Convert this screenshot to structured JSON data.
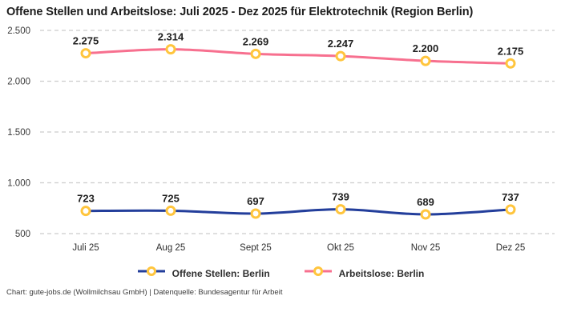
{
  "title": "Offene Stellen und Arbeitslose: Juli 2025 - Dez 2025 für Elektrotechnik (Region Berlin)",
  "footer": "Chart: gute-jobs.de (Wollmilchsau GmbH) | Datenquelle: Bundesagentur für Arbeit",
  "legend": {
    "items": [
      {
        "label": "Offene Stellen: Berlin",
        "color": "#233E9B"
      },
      {
        "label": "Arbeitslose: Berlin",
        "color": "#F7708F"
      }
    ]
  },
  "colors": {
    "grid": "#cccccc",
    "marker_stroke": "#FFC53D",
    "marker_fill": "#ffffff",
    "title_text": "#1c1c1c",
    "label_text": "#1f1f1f"
  },
  "chart_data": {
    "type": "line",
    "title": "Offene Stellen und Arbeitslose: Juli 2025 - Dez 2025 für Elektrotechnik (Region Berlin)",
    "categories": [
      "Juli 25",
      "Aug 25",
      "Sept 25",
      "Okt 25",
      "Nov 25",
      "Dez 25"
    ],
    "series": [
      {
        "name": "Offene Stellen: Berlin",
        "color": "#233E9B",
        "values": [
          723,
          725,
          697,
          739,
          689,
          737
        ]
      },
      {
        "name": "Arbeitslose: Berlin",
        "color": "#F7708F",
        "values": [
          2275,
          2314,
          2269,
          2247,
          2200,
          2175
        ]
      }
    ],
    "yticks": [
      500,
      1000,
      1500,
      2000,
      2500
    ],
    "ylim": [
      500,
      2500
    ],
    "xlabel": "",
    "ylabel": "",
    "grid": "horizontal-dashed",
    "legend_position": "bottom",
    "number_format": "de-DE",
    "point_labels_visible": true
  }
}
